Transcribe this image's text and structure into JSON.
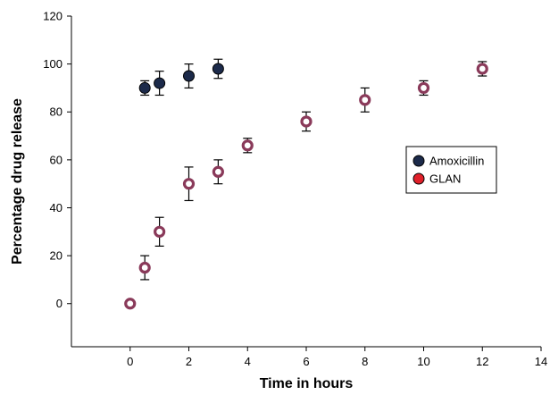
{
  "chart_data": {
    "type": "scatter",
    "title": "",
    "xlabel": "Time in hours",
    "ylabel": "Percentage drug release",
    "xlim": [
      -2,
      14
    ],
    "ylim": [
      -18,
      120
    ],
    "xticks": [
      0,
      2,
      4,
      6,
      8,
      10,
      12,
      14
    ],
    "yticks": [
      0,
      20,
      40,
      60,
      80,
      100,
      120
    ],
    "legend_placement": "right",
    "grid": false,
    "series": [
      {
        "name": "Amoxicillin",
        "marker": "filled-circle",
        "fill_color": "#1c2a4a",
        "edge_color": "#000000",
        "points": [
          {
            "x": 0.5,
            "y": 90,
            "err_low": 3,
            "err_high": 3
          },
          {
            "x": 1,
            "y": 92,
            "err_low": 5,
            "err_high": 5
          },
          {
            "x": 2,
            "y": 95,
            "err_low": 5,
            "err_high": 5
          },
          {
            "x": 3,
            "y": 98,
            "err_low": 4,
            "err_high": 4
          }
        ]
      },
      {
        "name": "GLAN",
        "marker": "ring",
        "fill_color": "#ffffff",
        "edge_color": "#8a3a5a",
        "legend_color": "#e0202a",
        "points": [
          {
            "x": 0,
            "y": 0,
            "err_low": 1,
            "err_high": 1
          },
          {
            "x": 0.5,
            "y": 15,
            "err_low": 5,
            "err_high": 5
          },
          {
            "x": 1,
            "y": 30,
            "err_low": 6,
            "err_high": 6
          },
          {
            "x": 2,
            "y": 50,
            "err_low": 7,
            "err_high": 7
          },
          {
            "x": 3,
            "y": 55,
            "err_low": 5,
            "err_high": 5
          },
          {
            "x": 4,
            "y": 66,
            "err_low": 3,
            "err_high": 3
          },
          {
            "x": 6,
            "y": 76,
            "err_low": 4,
            "err_high": 4
          },
          {
            "x": 8,
            "y": 85,
            "err_low": 5,
            "err_high": 5
          },
          {
            "x": 10,
            "y": 90,
            "err_low": 3,
            "err_high": 3
          },
          {
            "x": 12,
            "y": 98,
            "err_low": 3,
            "err_high": 3
          }
        ]
      }
    ]
  }
}
